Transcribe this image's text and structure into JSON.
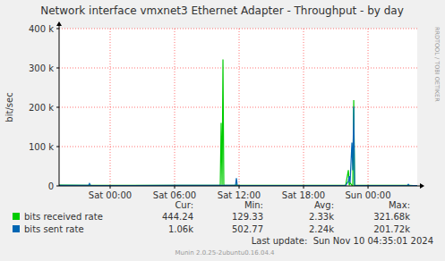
{
  "chart_data": {
    "type": "line",
    "title": "Network interface vmxnet3 Ethernet Adapter - Throughput - by day",
    "y_label": "bit/sec",
    "watermark": "RRDTOOL / TOBI OETIKER",
    "x": [
      -4.75,
      -2.0,
      -1.92,
      -1.83,
      2.0,
      6.0,
      10.25,
      10.33,
      10.42,
      10.5,
      10.58,
      11.67,
      11.75,
      11.83,
      17.25,
      21.92,
      22.17,
      22.25,
      22.33,
      22.5,
      22.58,
      22.67,
      22.75,
      24.75,
      27.67,
      27.75,
      27.83,
      28.58
    ],
    "series": [
      {
        "name": "bits received rate",
        "color": "#00cc00",
        "values": [
          1800,
          1500,
          3000,
          1500,
          1200,
          1500,
          1500,
          160000,
          1500,
          321680,
          1500,
          1500,
          4000,
          1500,
          1200,
          1500,
          40000,
          1500,
          8000,
          1500,
          1500,
          218000,
          1500,
          1200,
          1500,
          1500,
          1500,
          444.24
        ],
        "stats": [
          444.24,
          129.33,
          {
            "value": 2330,
            "label": "2.33k"
          },
          {
            "value": 321680,
            "label": "321.68k"
          }
        ]
      },
      {
        "name": "bits sent rate",
        "color": "#0066b3",
        "values": [
          1500,
          1500,
          6000,
          1500,
          1000,
          1200,
          1200,
          1500,
          1200,
          1500,
          1200,
          1500,
          20000,
          1500,
          1000,
          1500,
          12000,
          25000,
          8000,
          110000,
          40000,
          201720,
          1500,
          1000,
          1200,
          4000,
          1200,
          1060
        ],
        "stats": [
          {
            "value": 1060,
            "label": "1.06k"
          },
          502.77,
          {
            "value": 2240,
            "label": "2.24k"
          },
          {
            "value": 201720,
            "label": "201.72k"
          }
        ]
      }
    ],
    "stats_columns": [
      "Cur:",
      "Min:",
      "Avg:",
      "Max:"
    ],
    "xlim": [
      -4.75,
      28.58
    ],
    "xticks": [
      {
        "value": 0,
        "label": "Sat 00:00"
      },
      {
        "value": 6,
        "label": "Sat 06:00"
      },
      {
        "value": 12,
        "label": "Sat 12:00"
      },
      {
        "value": 18,
        "label": "Sat 18:00"
      },
      {
        "value": 24,
        "label": "Sun 00:00"
      }
    ],
    "ylim": [
      0,
      400000
    ],
    "yticks": [
      0,
      {
        "value": 100000,
        "label": "100 k"
      },
      {
        "value": 200000,
        "label": "200 k"
      },
      {
        "value": 300000,
        "label": "300 k"
      },
      {
        "value": 400000,
        "label": "400 k"
      }
    ],
    "grid": true,
    "legend": "bottom",
    "last_update": "Last update:  Sun Nov 10 04:35:01 2024",
    "footer": "Munin 2.0.25-2ubuntu0.16.04.4"
  }
}
